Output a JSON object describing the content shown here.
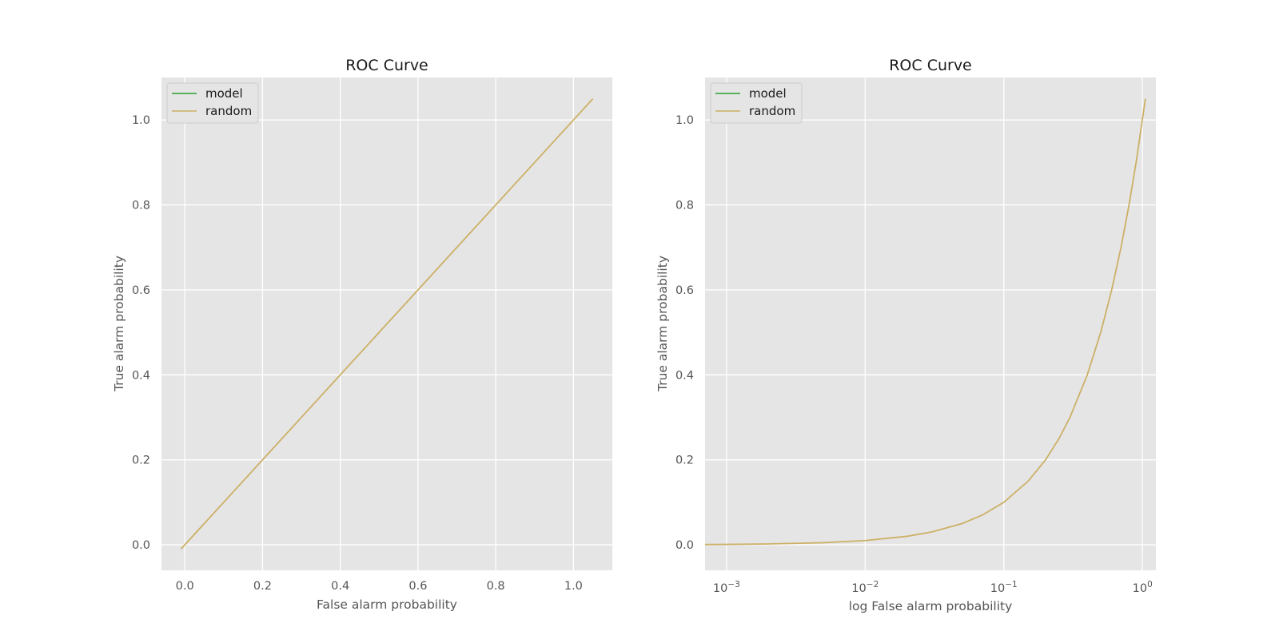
{
  "colors": {
    "model": "#2ca02c",
    "random": "#ccb066",
    "plot_background": "#e5e5e5",
    "grid": "#ffffff"
  },
  "chart_data": [
    {
      "type": "line",
      "title": "ROC Curve",
      "xlabel": "False alarm probability",
      "ylabel": "True alarm probability",
      "xscale": "linear",
      "xlim": [
        -0.06,
        1.1
      ],
      "ylim": [
        -0.06,
        1.1
      ],
      "xticks": [
        0.0,
        0.2,
        0.4,
        0.6,
        0.8,
        1.0
      ],
      "xticklabels": [
        "0.0",
        "0.2",
        "0.4",
        "0.6",
        "0.8",
        "1.0"
      ],
      "yticks": [
        0.0,
        0.2,
        0.4,
        0.6,
        0.8,
        1.0
      ],
      "yticklabels": [
        "0.0",
        "0.2",
        "0.4",
        "0.6",
        "0.8",
        "1.0"
      ],
      "grid": true,
      "legend": "upper-left",
      "series": [
        {
          "name": "model",
          "color": "#2ca02c",
          "x": [],
          "y": []
        },
        {
          "name": "random",
          "color": "#ccb066",
          "x": [
            -0.01,
            0.25,
            0.5,
            0.75,
            1.05
          ],
          "y": [
            -0.01,
            0.25,
            0.5,
            0.75,
            1.05
          ]
        }
      ]
    },
    {
      "type": "line",
      "title": "ROC Curve",
      "xlabel": "log False alarm probability",
      "ylabel": "True alarm probability",
      "xscale": "log",
      "xlim": [
        0.0007,
        1.25
      ],
      "ylim": [
        -0.06,
        1.1
      ],
      "xticks": [
        0.001,
        0.01,
        0.1,
        1
      ],
      "xticklabels": [
        {
          "base": "10",
          "exp": "−3"
        },
        {
          "base": "10",
          "exp": "−2"
        },
        {
          "base": "10",
          "exp": "−1"
        },
        {
          "base": "10",
          "exp": "0"
        }
      ],
      "yticks": [
        0.0,
        0.2,
        0.4,
        0.6,
        0.8,
        1.0
      ],
      "yticklabels": [
        "0.0",
        "0.2",
        "0.4",
        "0.6",
        "0.8",
        "1.0"
      ],
      "grid": true,
      "legend": "upper-left",
      "series": [
        {
          "name": "model",
          "color": "#2ca02c",
          "x": [],
          "y": []
        },
        {
          "name": "random",
          "color": "#ccb066",
          "x": [
            0.0007,
            0.001,
            0.002,
            0.005,
            0.01,
            0.02,
            0.03,
            0.05,
            0.07,
            0.1,
            0.15,
            0.2,
            0.25,
            0.3,
            0.4,
            0.5,
            0.6,
            0.7,
            0.8,
            0.9,
            1.05
          ],
          "y": [
            0.0007,
            0.001,
            0.002,
            0.005,
            0.01,
            0.02,
            0.03,
            0.05,
            0.07,
            0.1,
            0.15,
            0.2,
            0.25,
            0.3,
            0.4,
            0.5,
            0.6,
            0.7,
            0.8,
            0.9,
            1.05
          ]
        }
      ]
    }
  ]
}
